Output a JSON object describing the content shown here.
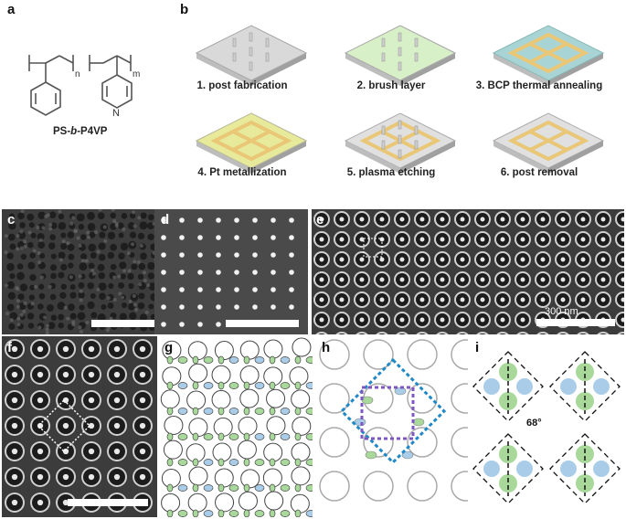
{
  "panels": {
    "a": {
      "label": "a",
      "chem_name": "PS-b-P4VP",
      "chem_prefix": "PS-",
      "chem_italic": "b",
      "chem_suffix": "-P4VP",
      "sub_n": "n",
      "sub_m": "m",
      "atom_n": "N"
    },
    "b": {
      "label": "b",
      "steps": [
        {
          "label": "1. post fabrication",
          "fill": "#d9d9d9"
        },
        {
          "label": "2. brush layer",
          "fill": "#d8f0c8"
        },
        {
          "label": "3. BCP thermal annealing",
          "fill": "#a9d4d6"
        },
        {
          "label": "4. Pt metallization",
          "fill": "#e6ea9a"
        },
        {
          "label": "5. plasma etching",
          "fill": "#e9c777"
        },
        {
          "label": "6. post removal",
          "fill": "#e9c777"
        }
      ]
    },
    "c": {
      "label": "c"
    },
    "d": {
      "label": "d"
    },
    "e": {
      "label": "e",
      "scale_bar": "300 nm"
    },
    "f": {
      "label": "f"
    },
    "g": {
      "label": "g"
    },
    "h": {
      "label": "h"
    },
    "i": {
      "label": "i",
      "angle": "68°"
    }
  },
  "colors": {
    "green": "#a8d89a",
    "blue": "#a9cde8",
    "gold": "#e9c777",
    "dashed_blue": "#1e88c8",
    "dashed_purple": "#7e57c2"
  }
}
